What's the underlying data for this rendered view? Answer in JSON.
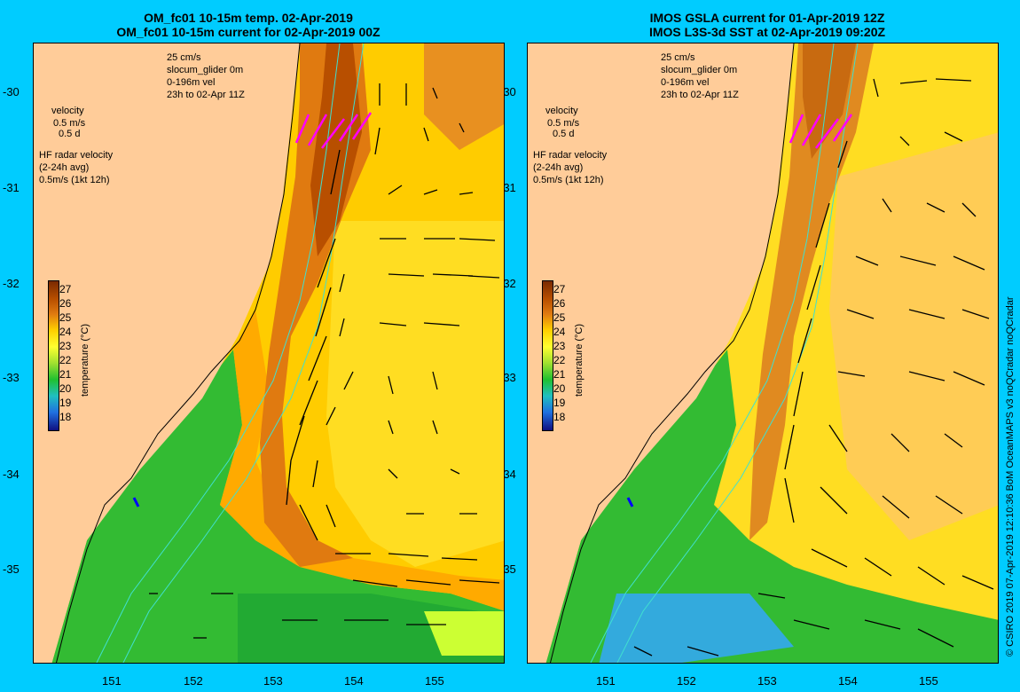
{
  "left_panel": {
    "title_line1": "OM_fc01 10-15m temp. 02-Apr-2019",
    "title_line2": "OM_fc01 10-15m current for 02-Apr-2019 00Z",
    "legend": {
      "scale": "25 cm/s",
      "glider": "slocum_glider 0m",
      "vel": "0-196m vel",
      "time": "23h to 02-Apr 11Z",
      "velocity_title": "velocity",
      "vel_ms": "0.5 m/s",
      "vel_d": "0.5 d",
      "hf_title": "HF radar velocity",
      "hf_avg": "(2-24h avg)",
      "hf_scale": "0.5m/s (1kt 12h)"
    }
  },
  "right_panel": {
    "title_line1": "IMOS GSLA current for 01-Apr-2019 12Z",
    "title_line2": "IMOS L3S-3d SST at 02-Apr-2019 09:20Z",
    "legend": {
      "scale": "25 cm/s",
      "glider": "slocum_glider 0m",
      "vel": "0-196m vel",
      "time": "23h to 02-Apr 11Z",
      "velocity_title": "velocity",
      "vel_ms": "0.5 m/s",
      "vel_d": "0.5 d",
      "hf_title": "HF radar velocity",
      "hf_avg": "(2-24h avg)",
      "hf_scale": "0.5m/s (1kt 12h)"
    }
  },
  "axes": {
    "lat_ticks": [
      "-30",
      "-31",
      "-32",
      "-33",
      "-34",
      "-35"
    ],
    "lon_ticks": [
      "151",
      "152",
      "153",
      "154",
      "155"
    ]
  },
  "colorbar": {
    "label": "temperature (°C)",
    "ticks": [
      "27",
      "26",
      "25",
      "24",
      "23",
      "22",
      "21",
      "20",
      "19",
      "18"
    ],
    "colors": [
      "#7a2a00",
      "#b84f00",
      "#e07a10",
      "#ffd000",
      "#ffff30",
      "#a0e030",
      "#20c030",
      "#20c0c0",
      "#2070e0",
      "#101080"
    ]
  },
  "side_text": "© CSIRO 2019  07-Apr-2019 12:10:36 BoM OceanMAPS v3 noQCradar noQCradar"
}
